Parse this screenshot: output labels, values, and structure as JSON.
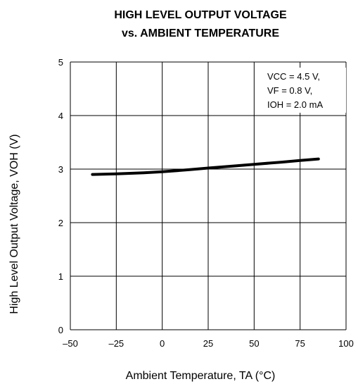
{
  "chart_data": {
    "type": "line",
    "title_line1": "HIGH LEVEL OUTPUT VOLTAGE",
    "title_line2": "vs. AMBIENT TEMPERATURE",
    "xlabel": "Ambient Temperature, TA (°C)",
    "ylabel": "High Level Output Voltage, VOH (V)",
    "xlim": [
      -50,
      100
    ],
    "ylim": [
      0,
      5
    ],
    "x_ticks": [
      -50,
      -25,
      0,
      25,
      50,
      75,
      100
    ],
    "x_tick_labels": [
      "–50",
      "–25",
      "0",
      "25",
      "50",
      "75",
      "100"
    ],
    "y_ticks": [
      0,
      1,
      2,
      3,
      4,
      5
    ],
    "y_tick_labels": [
      "0",
      "1",
      "2",
      "3",
      "4",
      "5"
    ],
    "grid": true,
    "conditions": [
      "VCC = 4.5 V,",
      "VF = 0.8 V,",
      "IOH = 2.0 mA"
    ],
    "series": [
      {
        "x": [
          -38,
          -25,
          -10,
          0,
          15,
          25,
          40,
          50,
          65,
          75,
          85
        ],
        "y": [
          2.9,
          2.91,
          2.93,
          2.95,
          2.99,
          3.02,
          3.06,
          3.09,
          3.13,
          3.16,
          3.19
        ]
      }
    ]
  }
}
